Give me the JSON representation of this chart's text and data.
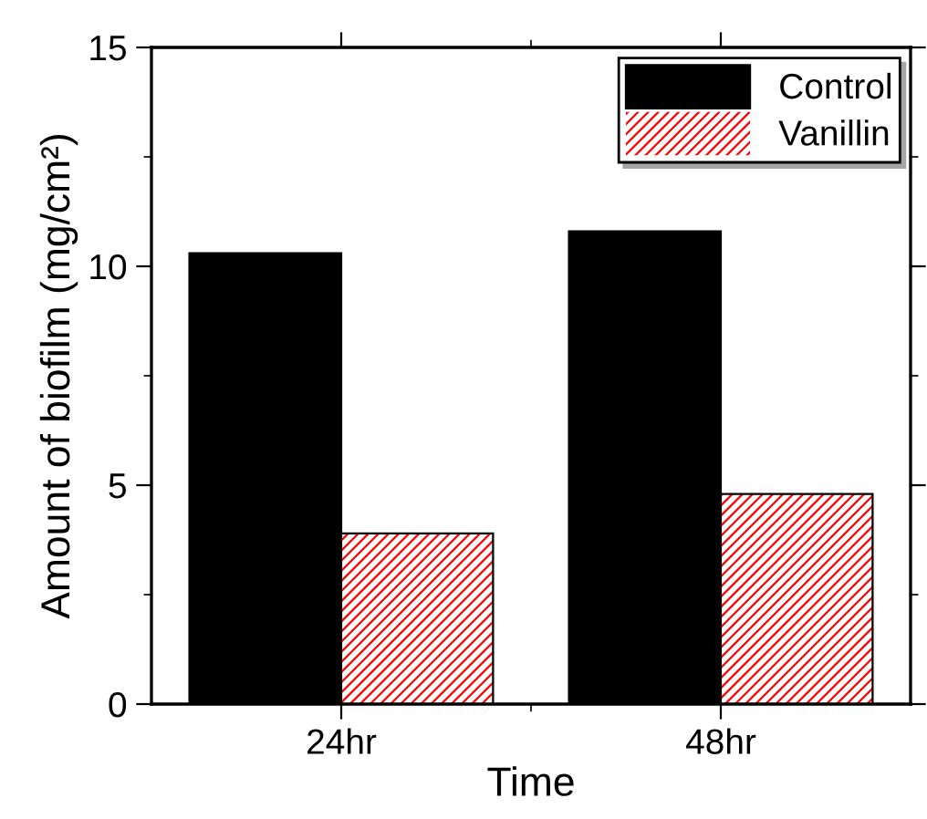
{
  "chart_data": {
    "type": "bar",
    "xlabel": "Time",
    "ylabel": "Amount of biofilm (mg/cm²)",
    "categories": [
      "24hr",
      "48hr"
    ],
    "series": [
      {
        "name": "Control",
        "color": "#000000",
        "values": [
          10.3,
          10.8
        ]
      },
      {
        "name": "Vanillin",
        "color": "#ff0000",
        "values": [
          3.9,
          4.8
        ]
      }
    ],
    "ylim": [
      0,
      15
    ],
    "yticks": [
      0,
      5,
      10,
      15
    ],
    "grid": false,
    "legend": "top right"
  }
}
